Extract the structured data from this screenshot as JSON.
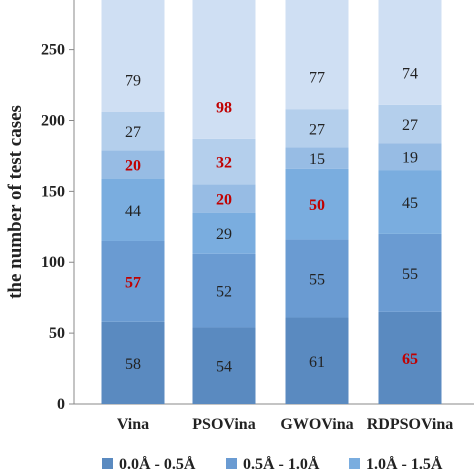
{
  "chart_data": {
    "type": "bar",
    "stacked": true,
    "ylabel": "the number of test cases",
    "xlabel": "",
    "ylim": [
      0,
      285
    ],
    "yticks": [
      0,
      50,
      100,
      150,
      200,
      250
    ],
    "categories": [
      "Vina",
      "PSOVina",
      "GWOVina",
      "RDPSOVina"
    ],
    "series": [
      {
        "name": "0.0Å - 0.5Å",
        "values": [
          58,
          54,
          61,
          65
        ],
        "color": "#5a8ac0"
      },
      {
        "name": "0.5Å - 1.0Å",
        "values": [
          57,
          52,
          55,
          55
        ],
        "color": "#6a9bd2"
      },
      {
        "name": "1.0Å - 1.5Å",
        "values": [
          44,
          29,
          50,
          45
        ],
        "color": "#7aaddf"
      },
      {
        "name": "",
        "values": [
          20,
          20,
          15,
          19
        ],
        "color": "#97bce4"
      },
      {
        "name": "",
        "values": [
          27,
          32,
          27,
          27
        ],
        "color": "#b4cfec"
      },
      {
        "name": "",
        "values": [
          79,
          98,
          77,
          74
        ],
        "color": "#cfdff3"
      }
    ],
    "stack_order_note_free": true,
    "label_values": [
      [
        "58",
        "57",
        "44",
        "20",
        "27",
        "79"
      ],
      [
        "54",
        "52",
        "29",
        "20",
        "32",
        "98"
      ],
      [
        "61",
        "55",
        "50",
        "15",
        "27",
        "77"
      ],
      [
        "65",
        "55",
        "45",
        "19",
        "27",
        "74"
      ]
    ],
    "highlight_color": "#c00000",
    "grid": false,
    "legend_position": "bottom"
  }
}
